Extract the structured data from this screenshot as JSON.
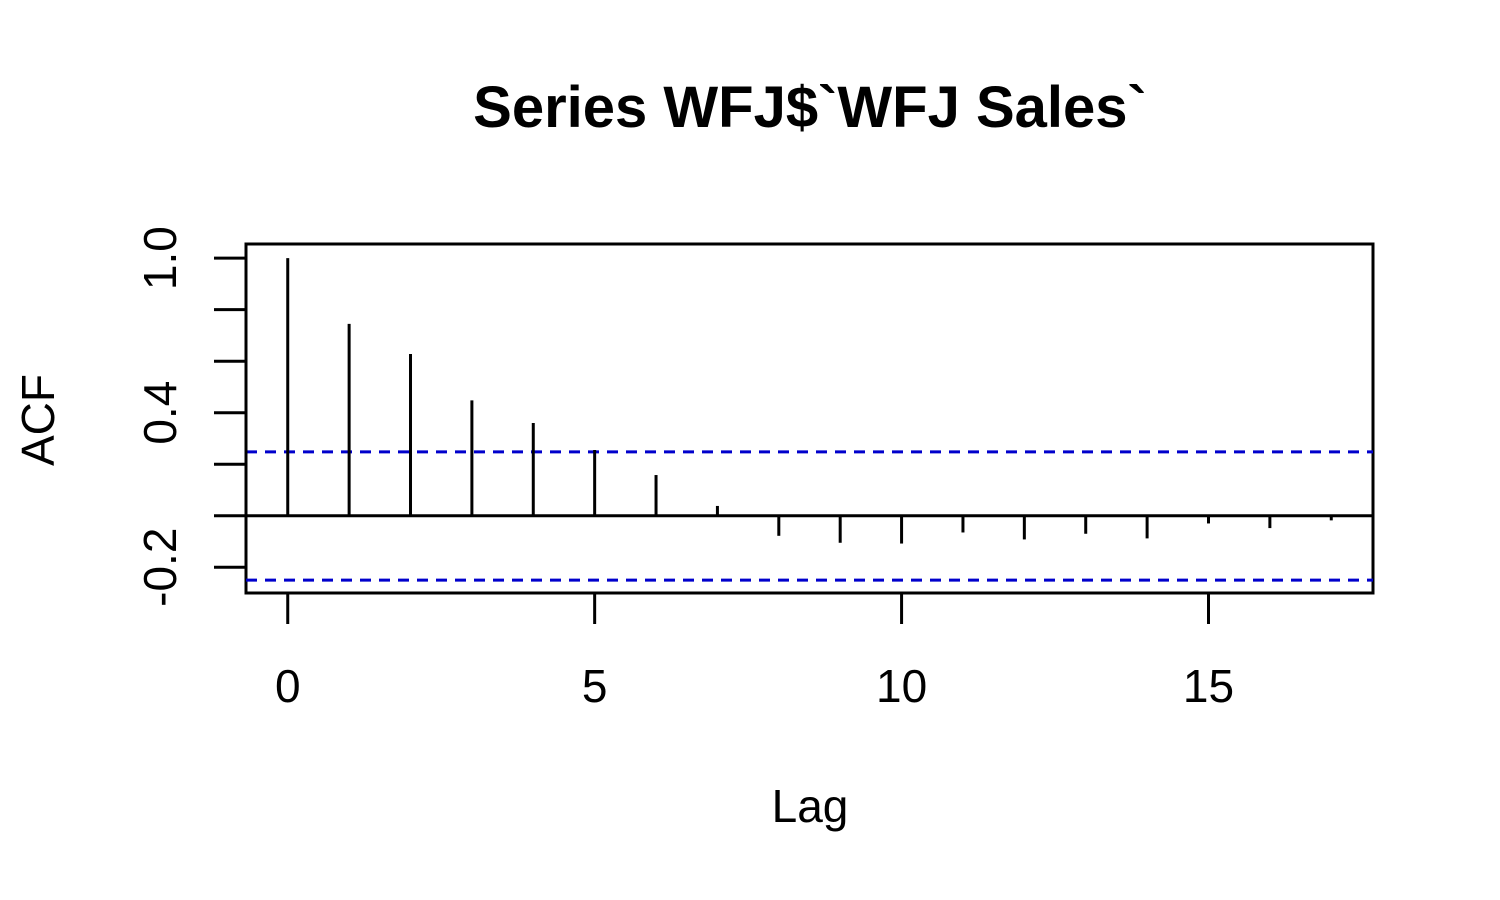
{
  "chart_data": {
    "type": "bar",
    "title": "Series  WFJ$`WFJ Sales`",
    "xlabel": "Lag",
    "ylabel": "ACF",
    "xlim": [
      -0.68,
      17.68
    ],
    "ylim": [
      -0.3,
      1.055
    ],
    "x_ticks": [
      0,
      5,
      10,
      15
    ],
    "x_tick_labels": [
      "0",
      "5",
      "10",
      "15"
    ],
    "y_ticks": [
      -0.2,
      0.0,
      0.2,
      0.4,
      0.6,
      0.8,
      1.0
    ],
    "y_tick_labels": [
      "-0.2",
      "",
      "",
      "0.4",
      "",
      "",
      "1.0"
    ],
    "lags": [
      0,
      1,
      2,
      3,
      4,
      5,
      6,
      7,
      8,
      9,
      10,
      11,
      12,
      13,
      14,
      15,
      16,
      17
    ],
    "acf": [
      1.0,
      0.745,
      0.628,
      0.448,
      0.36,
      0.255,
      0.158,
      0.038,
      -0.078,
      -0.105,
      -0.108,
      -0.065,
      -0.092,
      -0.07,
      -0.088,
      -0.03,
      -0.048,
      -0.018
    ],
    "confidence_band": [
      0.248,
      -0.25
    ],
    "zero_line": 0,
    "grid": false,
    "legend": "none",
    "colors": {
      "bars": "#000000",
      "confidence_band": "#0000cc",
      "frame": "#000000"
    }
  }
}
